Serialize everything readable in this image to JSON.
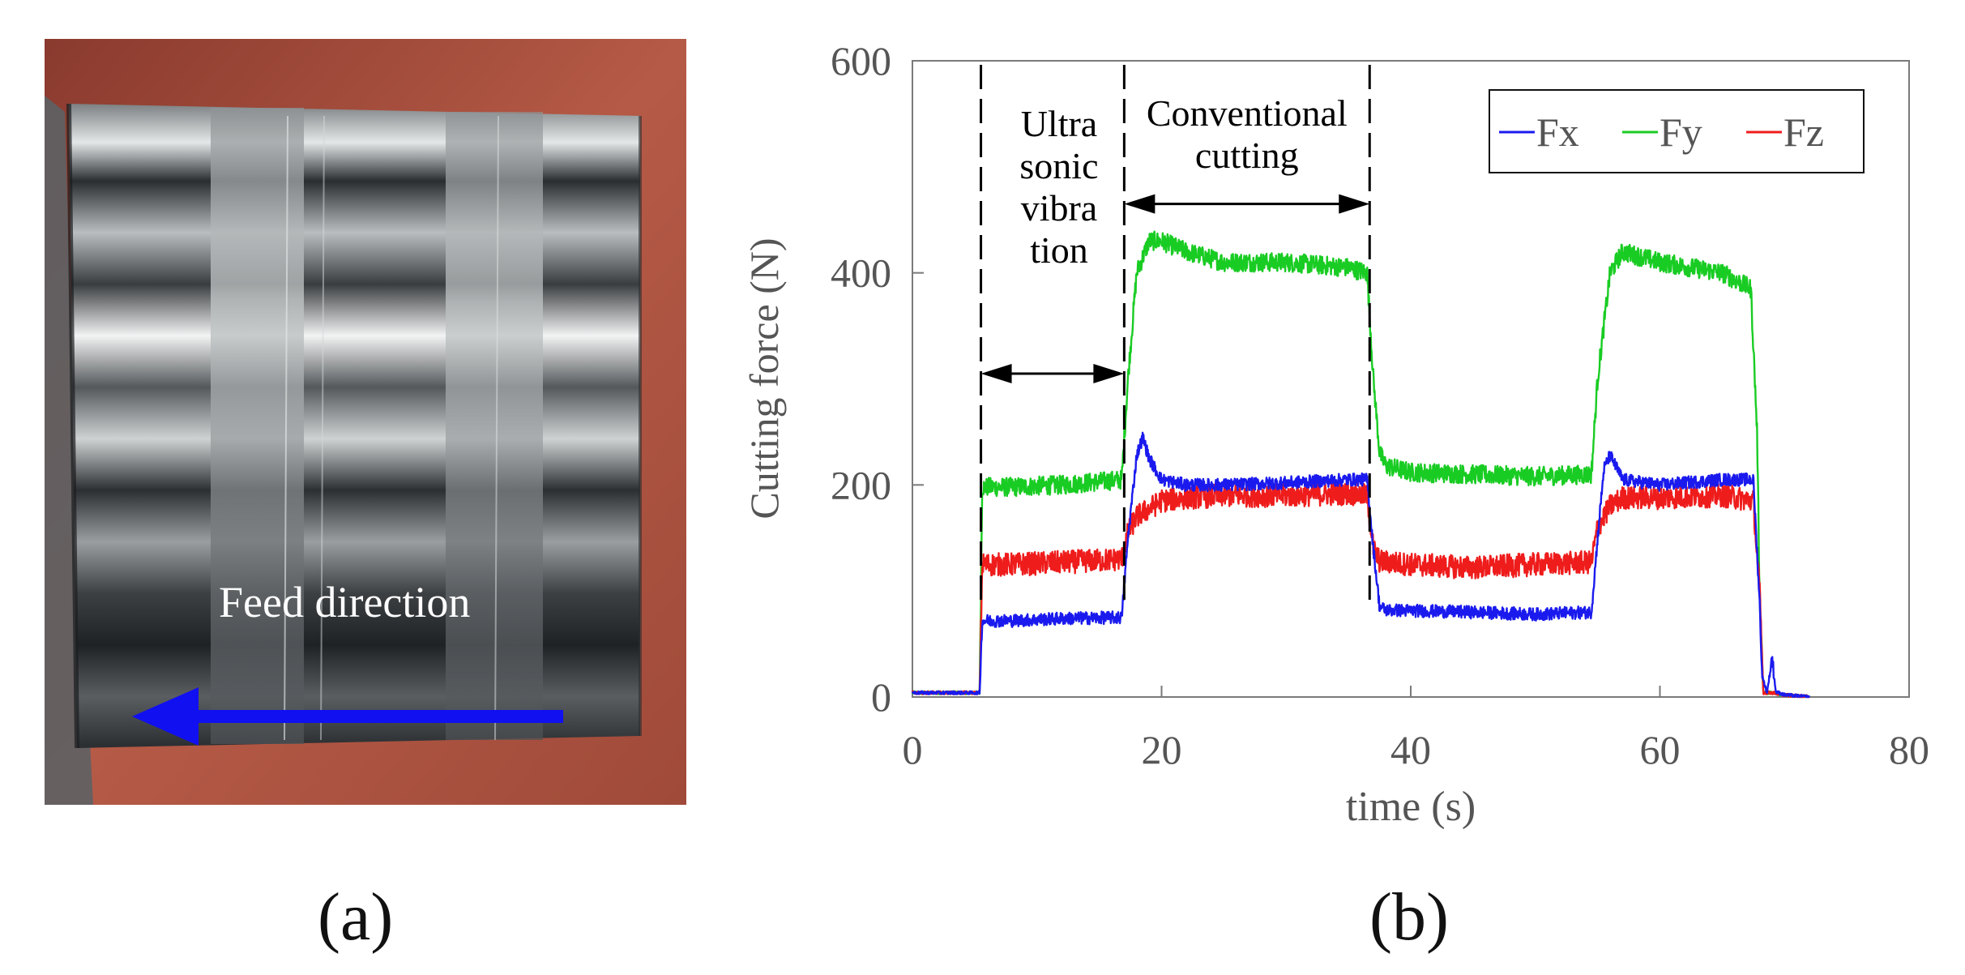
{
  "photo": {
    "caption": "Feed direction",
    "arrow_color": "#1010f0"
  },
  "labels": {
    "a": "(a)",
    "b": "(b)"
  },
  "annotations": {
    "ultrasonic_lines": [
      "Ultra",
      "sonic",
      "vibra",
      "tion"
    ],
    "conventional_lines": [
      "Conventional",
      "cutting"
    ]
  },
  "chart_data": {
    "type": "line",
    "xlabel": "time (s)",
    "ylabel": "Cutting force (N)",
    "xlim": [
      0,
      80
    ],
    "ylim": [
      0,
      600
    ],
    "xticks": [
      0,
      20,
      40,
      60,
      80
    ],
    "yticks": [
      0,
      200,
      400,
      600
    ],
    "grid": false,
    "legend_position": "top-right",
    "dividers_x": [
      5.5,
      17,
      36.7
    ],
    "spans": [
      {
        "label": "Ultrasonic vibration",
        "x": [
          5.5,
          17
        ]
      },
      {
        "label": "Conventional cutting",
        "x": [
          17,
          36.7
        ]
      }
    ],
    "series": [
      {
        "name": "Fx",
        "color": "#1a1aee",
        "noise": 6,
        "x": [
          0,
          5.4,
          5.6,
          8,
          12,
          16.8,
          17.3,
          18,
          18.5,
          19,
          20,
          22,
          25,
          30,
          35,
          36.5,
          37,
          37.5,
          38,
          45,
          50,
          54.5,
          55,
          55.5,
          56,
          57,
          60,
          65,
          67.5,
          68,
          68.2,
          68.6,
          69,
          69.3,
          70,
          72
        ],
        "values": [
          4,
          4,
          72,
          72,
          74,
          75,
          150,
          228,
          245,
          225,
          205,
          200,
          200,
          202,
          205,
          205,
          140,
          85,
          82,
          80,
          78,
          80,
          150,
          215,
          228,
          205,
          200,
          205,
          205,
          90,
          20,
          4,
          38,
          5,
          2,
          0
        ]
      },
      {
        "name": "Fy",
        "color": "#19cc23",
        "noise": 9,
        "x": [
          0,
          5.4,
          5.6,
          8,
          12,
          16.8,
          17.3,
          18,
          19,
          20,
          22,
          25,
          30,
          35,
          36.5,
          37,
          37.5,
          38,
          40,
          45,
          50,
          54.5,
          55,
          56,
          57,
          60,
          65,
          67.3,
          67.8,
          68,
          68.3,
          69,
          70,
          72
        ],
        "values": [
          4,
          4,
          198,
          198,
          200,
          205,
          300,
          400,
          430,
          430,
          420,
          410,
          410,
          405,
          400,
          300,
          230,
          218,
          212,
          210,
          208,
          210,
          300,
          400,
          420,
          410,
          400,
          385,
          250,
          100,
          4,
          4,
          2,
          0
        ]
      },
      {
        "name": "Fz",
        "color": "#ef1c1c",
        "noise": 11,
        "x": [
          0,
          5.4,
          5.6,
          8,
          12,
          16.8,
          17.3,
          18,
          20,
          22,
          25,
          30,
          35,
          36.5,
          37,
          37.5,
          40,
          45,
          50,
          54.5,
          55,
          56,
          57,
          60,
          65,
          67.5,
          68,
          68.3,
          69,
          70,
          72
        ],
        "values": [
          4,
          4,
          125,
          125,
          127,
          130,
          155,
          170,
          185,
          188,
          190,
          190,
          192,
          190,
          140,
          128,
          125,
          122,
          125,
          127,
          160,
          180,
          188,
          188,
          190,
          185,
          100,
          4,
          4,
          2,
          0
        ]
      }
    ]
  }
}
